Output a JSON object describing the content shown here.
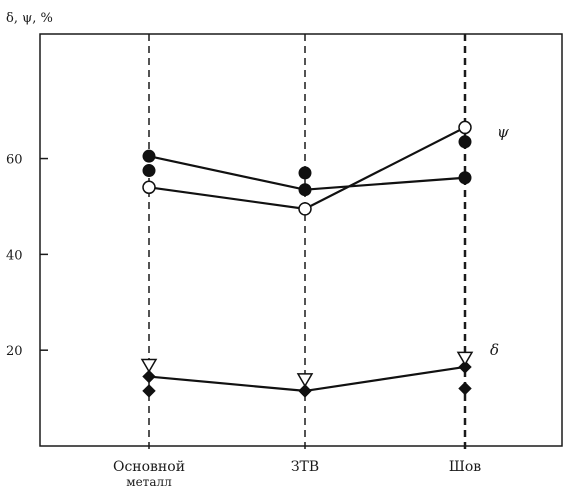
{
  "chart_data": {
    "type": "line",
    "ylabel": "δ, ψ, %",
    "categories": [
      "Основной",
      "ЗТВ",
      "Шов"
    ],
    "category_sublabel": "металл",
    "yticks": [
      20,
      40,
      60
    ],
    "ylim": [
      0,
      86
    ],
    "grid": false,
    "series": [
      {
        "name": "ψ",
        "marker": "filled-circle",
        "connected": true,
        "values": [
          60.5,
          53.5,
          56.0
        ]
      },
      {
        "name": "ψ",
        "marker": "open-circle",
        "connected": true,
        "values": [
          54.0,
          49.5,
          66.5
        ]
      },
      {
        "name": "ψ",
        "marker": "filled-circle",
        "connected": false,
        "values": [
          57.5,
          57.0,
          63.5
        ]
      },
      {
        "name": "δ",
        "marker": "filled-diamond",
        "connected": true,
        "values": [
          14.5,
          11.5,
          16.5
        ]
      },
      {
        "name": "δ",
        "marker": "open-triangle",
        "connected": false,
        "values": [
          17.0,
          14.0,
          18.5
        ]
      },
      {
        "name": "δ",
        "marker": "filled-diamond",
        "connected": false,
        "values": [
          11.5,
          11.5,
          12.0
        ]
      }
    ],
    "series_labels": [
      {
        "text": "ψ",
        "near": "right of Шов, upper group"
      },
      {
        "text": "δ",
        "near": "right of Шов, lower group"
      }
    ],
    "colors": {
      "line": "#111111",
      "marker_fill": "#111111",
      "open_fill": "#ffffff"
    }
  }
}
